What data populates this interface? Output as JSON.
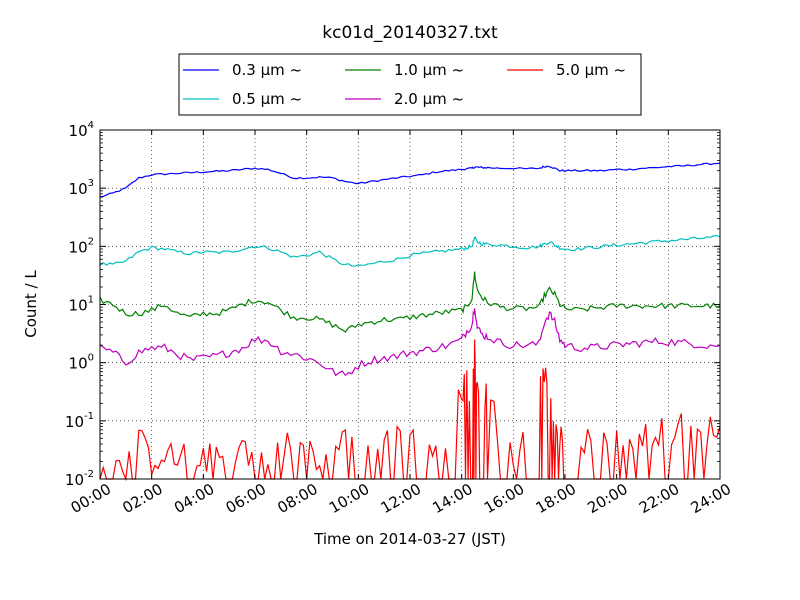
{
  "chart_data": {
    "type": "line",
    "title": "kc01d_20140327.txt",
    "xlabel": "Time on 2014-03-27 (JST)",
    "ylabel": "Count / L",
    "x_unit": "hours",
    "xlim": [
      0,
      24
    ],
    "ylim": [
      0.01,
      10000
    ],
    "yscale": "log",
    "grid": true,
    "legend_position": "top-center",
    "x_tick_labels": [
      "00:00",
      "02:00",
      "04:00",
      "06:00",
      "08:00",
      "10:00",
      "12:00",
      "14:00",
      "16:00",
      "18:00",
      "20:00",
      "22:00",
      "24:00"
    ],
    "y_tick_labels": [
      {
        "base": "10",
        "exp": "-2"
      },
      {
        "base": "10",
        "exp": "-1"
      },
      {
        "base": "10",
        "exp": "0"
      },
      {
        "base": "10",
        "exp": "1"
      },
      {
        "base": "10",
        "exp": "2"
      },
      {
        "base": "10",
        "exp": "3"
      },
      {
        "base": "10",
        "exp": "4"
      }
    ],
    "x": [
      0,
      0.5,
      1,
      1.5,
      2,
      2.5,
      3,
      3.5,
      4,
      4.5,
      5,
      5.5,
      6,
      6.5,
      7,
      7.5,
      8,
      8.5,
      9,
      9.5,
      10,
      10.5,
      11,
      11.5,
      12,
      12.5,
      13,
      13.5,
      14,
      14.2,
      14.4,
      14.5,
      14.6,
      14.8,
      15,
      15.5,
      16,
      16.5,
      17,
      17.2,
      17.4,
      17.6,
      17.8,
      18,
      18.5,
      19,
      19.5,
      20,
      20.5,
      21,
      21.5,
      22,
      22.5,
      23,
      23.5,
      24
    ],
    "series": [
      {
        "name": "0.3 μm ~",
        "color": "#0000ff",
        "values": [
          700,
          820,
          1000,
          1500,
          1700,
          1750,
          1800,
          1850,
          1900,
          1950,
          2000,
          2100,
          2200,
          2100,
          1800,
          1500,
          1500,
          1550,
          1500,
          1300,
          1200,
          1300,
          1400,
          1500,
          1600,
          1700,
          1900,
          2000,
          2100,
          2150,
          2200,
          2300,
          2300,
          2250,
          2250,
          2200,
          2200,
          2150,
          2200,
          2350,
          2400,
          2200,
          2000,
          2000,
          2000,
          2000,
          2000,
          2100,
          2100,
          2200,
          2250,
          2350,
          2400,
          2500,
          2600,
          2700
        ]
      },
      {
        "name": "0.5 μm ~",
        "color": "#00bfbf",
        "values": [
          50,
          48,
          55,
          80,
          95,
          90,
          80,
          75,
          80,
          78,
          80,
          90,
          100,
          95,
          80,
          65,
          70,
          80,
          60,
          48,
          45,
          50,
          55,
          60,
          70,
          75,
          80,
          85,
          90,
          95,
          100,
          140,
          120,
          110,
          110,
          105,
          100,
          95,
          100,
          110,
          120,
          105,
          95,
          90,
          90,
          95,
          100,
          105,
          110,
          115,
          120,
          125,
          130,
          135,
          140,
          145
        ]
      },
      {
        "name": "1.0 μm ~",
        "color": "#008000",
        "values": [
          12,
          10,
          7,
          7,
          8,
          10,
          7,
          6,
          7,
          7,
          8,
          10,
          12,
          11,
          8,
          6,
          6,
          5.5,
          4.5,
          3.5,
          4.5,
          5,
          5.5,
          5.5,
          6,
          6.5,
          7,
          7.5,
          8,
          9,
          13,
          35,
          18,
          13,
          11,
          9,
          8.5,
          8.5,
          9,
          14,
          18,
          15,
          10,
          8.5,
          8,
          8.5,
          9,
          9.5,
          9.5,
          9.5,
          9.5,
          9.5,
          9.5,
          9.5,
          9.5,
          9.5
        ]
      },
      {
        "name": "2.0 μm ~",
        "color": "#bf00bf",
        "values": [
          1.8,
          1.5,
          1,
          1.5,
          1.8,
          1.8,
          1.4,
          1.1,
          1.2,
          1.3,
          1.5,
          1.8,
          2.5,
          2.4,
          1.6,
          1.4,
          1.2,
          1,
          0.7,
          0.6,
          0.9,
          1.1,
          1.2,
          1.3,
          1.5,
          1.6,
          1.8,
          2,
          2.5,
          3.5,
          4.5,
          10,
          4,
          3,
          2.8,
          2.2,
          2,
          2,
          2.1,
          5,
          7,
          5,
          2.5,
          2,
          1.8,
          1.8,
          1.9,
          2,
          2.1,
          2.2,
          2.3,
          2.3,
          2.2,
          2.1,
          2,
          2
        ]
      },
      {
        "name": "5.0 μm ~",
        "color": "#ff0000",
        "values": [
          0.01,
          0.04,
          0.02,
          0.05,
          0.02,
          0.03,
          0.02,
          0.04,
          0.02,
          0.03,
          0.02,
          0.04,
          0.02,
          0.03,
          0.05,
          0.03,
          0.04,
          0.02,
          0.03,
          0.05,
          0.03,
          0.04,
          0.04,
          0.05,
          0.06,
          0.05,
          0.04,
          0.06,
          0.3,
          0.6,
          0.15,
          1.5,
          0.3,
          0.1,
          0.4,
          0.05,
          0.02,
          0.06,
          0.3,
          0.6,
          0.5,
          0.1,
          0.05,
          0.04,
          0.06,
          0.04,
          0.05,
          0.06,
          0.05,
          0.06,
          0.07,
          0.06,
          0.08,
          0.06,
          0.07,
          0.08
        ]
      }
    ]
  }
}
